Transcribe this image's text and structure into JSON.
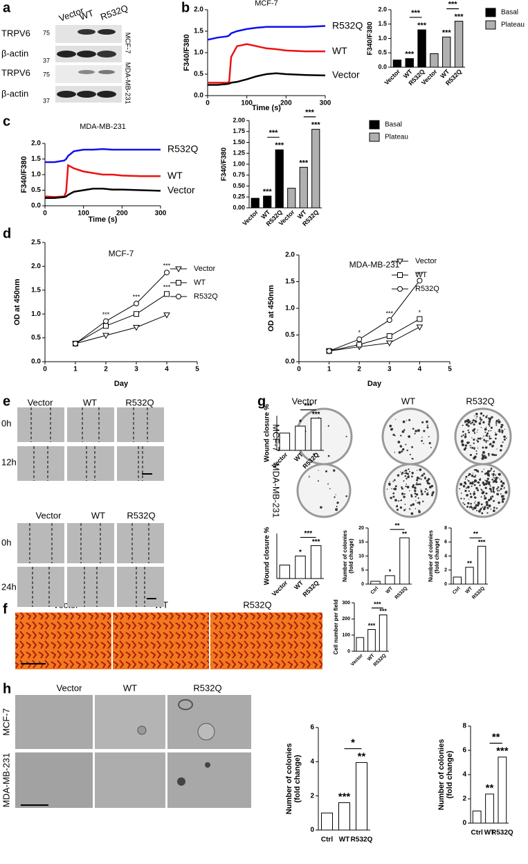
{
  "panel_labels": [
    "a",
    "b",
    "c",
    "d",
    "e",
    "g",
    "f",
    "h"
  ],
  "blot": {
    "lanes": [
      "Vector",
      "WT",
      "R532Q"
    ],
    "proteins": [
      "TRPV6",
      "β-actin",
      "TRPV6",
      "β-actin"
    ],
    "markers": [
      "75",
      "37",
      "75",
      "37"
    ],
    "cell_lines": [
      "MCF-7",
      "MDA-MB-231"
    ]
  },
  "wound": {
    "columns": [
      "Vector",
      "WT",
      "R532Q"
    ],
    "times": [
      "0h",
      "12h"
    ],
    "columns_2": [
      "Vector",
      "WT",
      "R532Q"
    ],
    "times_2": [
      "0h",
      "24h"
    ]
  },
  "colony": {
    "columns": [
      "Vector",
      "WT",
      "R532Q"
    ],
    "rows": [
      "MCF-7",
      "MDA-MB-231"
    ]
  },
  "invasion": {
    "columns": [
      "Vector",
      "WT",
      "R532Q"
    ]
  },
  "soft_agar": {
    "columns": [
      "Vector",
      "WT",
      "R532Q"
    ],
    "rows": [
      "MCF-7",
      "MDA-MB-231"
    ]
  },
  "chart_data": [
    {
      "type": "line",
      "title": "MCF-7",
      "xlabel": "Time (s)",
      "ylabel": "F340/F380",
      "x": [
        0,
        25,
        50,
        55,
        60,
        75,
        100,
        125,
        150,
        175,
        200,
        250,
        300
      ],
      "xlim": [
        0,
        300
      ],
      "xticks": [
        0,
        100,
        200,
        300
      ],
      "ylim": [
        0,
        2
      ],
      "yticks": [
        {
          "value": 0,
          "label": "0.0"
        },
        0.5,
        {
          "value": 1,
          "label": "1.0"
        },
        1.5,
        {
          "value": 2,
          "label": "2.0"
        }
      ],
      "legend": "end",
      "series": [
        {
          "name": "R532Q",
          "color": "#1010ee",
          "values": [
            1.3,
            1.35,
            1.38,
            1.4,
            1.45,
            1.5,
            1.55,
            1.58,
            1.6,
            1.6,
            1.6,
            1.6,
            1.62
          ]
        },
        {
          "name": "WT",
          "color": "#ee1010",
          "values": [
            0.3,
            0.3,
            0.3,
            0.32,
            0.9,
            1.15,
            1.2,
            1.15,
            1.1,
            1.08,
            1.05,
            1.03,
            1.03
          ]
        },
        {
          "name": "Vector",
          "color": "#000000",
          "values": [
            0.25,
            0.25,
            0.27,
            0.28,
            0.3,
            0.32,
            0.38,
            0.45,
            0.5,
            0.52,
            0.5,
            0.48,
            0.47
          ]
        }
      ]
    },
    {
      "type": "bar",
      "ylabel": "F340/F380",
      "categories": [
        "Vector",
        "WT",
        "R532Q",
        "Vector",
        "WT",
        "R532Q"
      ],
      "ylim": [
        0,
        2
      ],
      "yticks": [
        {
          "value": 0,
          "label": "0.0"
        },
        0.5,
        {
          "value": 1,
          "label": "1.0"
        },
        1.5,
        {
          "value": 2,
          "label": "2.0"
        }
      ],
      "tick_label_rotation": 45,
      "legend": "right",
      "series": [
        {
          "name": "Basal",
          "color": "#000000",
          "values": [
            0.25,
            0.3,
            1.3,
            null,
            null,
            null
          ],
          "stars": [
            null,
            "***",
            "***",
            null,
            null,
            null
          ]
        },
        {
          "name": "Plateau",
          "color": "#b0b0b0",
          "values": [
            null,
            null,
            null,
            0.47,
            1.05,
            1.6
          ],
          "stars": [
            null,
            null,
            null,
            null,
            "***",
            "***"
          ]
        }
      ],
      "brackets": [
        {
          "from": 1,
          "to": 2,
          "label": "***"
        },
        {
          "from": 4,
          "to": 5,
          "label": "***"
        }
      ]
    },
    {
      "type": "line",
      "title": "MDA-MB-231",
      "xlabel": "Time (s)",
      "ylabel": "F340/F380",
      "x": [
        0,
        25,
        50,
        55,
        60,
        75,
        100,
        125,
        150,
        175,
        200,
        250,
        300
      ],
      "xlim": [
        0,
        300
      ],
      "xticks": [
        0,
        100,
        200,
        300
      ],
      "ylim": [
        0,
        2
      ],
      "yticks": [
        {
          "value": 0,
          "label": "0.0"
        },
        0.5,
        {
          "value": 1,
          "label": "1.0"
        },
        1.5,
        {
          "value": 2,
          "label": "2.0"
        }
      ],
      "legend": "end",
      "series": [
        {
          "name": "R532Q",
          "color": "#1010ee",
          "values": [
            1.4,
            1.4,
            1.45,
            1.5,
            1.6,
            1.75,
            1.8,
            1.8,
            1.82,
            1.8,
            1.8,
            1.8,
            1.8
          ]
        },
        {
          "name": "WT",
          "color": "#ee1010",
          "values": [
            0.3,
            0.28,
            0.3,
            0.45,
            1.3,
            1.2,
            1.1,
            1.05,
            1.0,
            1.0,
            0.97,
            0.95,
            0.95
          ]
        },
        {
          "name": "Vector",
          "color": "#000000",
          "values": [
            0.25,
            0.25,
            0.28,
            0.3,
            0.35,
            0.45,
            0.5,
            0.55,
            0.55,
            0.52,
            0.52,
            0.5,
            0.48
          ]
        }
      ]
    },
    {
      "type": "bar",
      "ylabel": "F340/F380",
      "categories": [
        "Vector",
        "WT",
        "R532Q",
        "Vector",
        "WT",
        "R532Q"
      ],
      "ylim": [
        0,
        2
      ],
      "yticks": [
        {
          "value": 0,
          "label": "0.00"
        },
        0.25,
        {
          "value": 0.5,
          "label": "0.50"
        },
        0.75,
        {
          "value": 1,
          "label": "1.00"
        },
        1.25,
        {
          "value": 1.5,
          "label": "1.50"
        },
        1.75,
        {
          "value": 2,
          "label": "2.00"
        }
      ],
      "tick_label_rotation": 45,
      "legend": "right",
      "series": [
        {
          "name": "Basal",
          "color": "#000000",
          "values": [
            0.22,
            0.27,
            1.33,
            null,
            null,
            null
          ],
          "stars": [
            null,
            "***",
            "***",
            null,
            null,
            null
          ]
        },
        {
          "name": "Plateau",
          "color": "#b0b0b0",
          "values": [
            null,
            null,
            null,
            0.45,
            0.93,
            1.8
          ],
          "stars": [
            null,
            null,
            null,
            null,
            "***",
            "***"
          ]
        }
      ],
      "brackets": [
        {
          "from": 1,
          "to": 2,
          "label": "***"
        },
        {
          "from": 4,
          "to": 5,
          "label": "***"
        }
      ]
    },
    {
      "type": "line",
      "title": "MCF-7",
      "xlabel": "Day",
      "ylabel": "OD at 450nm",
      "x": [
        1,
        2,
        3,
        4
      ],
      "xlim": [
        0,
        5
      ],
      "xticks": [
        0,
        1,
        2,
        3,
        4,
        5
      ],
      "ylim": [
        0,
        2.5
      ],
      "yticks": [
        {
          "value": 0,
          "label": "0.0"
        },
        0.5,
        {
          "value": 1,
          "label": "1.0"
        },
        1.5,
        {
          "value": 2,
          "label": "2.0"
        },
        2.5
      ],
      "legend": "right",
      "series": [
        {
          "name": "Vector",
          "color": "#000000",
          "marker": "triangle-down",
          "values": [
            0.38,
            0.55,
            0.72,
            0.98
          ]
        },
        {
          "name": "WT",
          "color": "#000000",
          "marker": "square",
          "values": [
            0.38,
            0.75,
            1.0,
            1.42
          ],
          "stars": [
            null,
            null,
            null,
            "***"
          ]
        },
        {
          "name": "R532Q",
          "color": "#000000",
          "marker": "circle",
          "values": [
            0.38,
            0.85,
            1.22,
            1.87
          ],
          "stars": [
            null,
            "***",
            "***",
            "***"
          ]
        }
      ]
    },
    {
      "type": "line",
      "title": "MDA-MB-231",
      "xlabel": "Day",
      "ylabel": "OD at 450nm",
      "x": [
        1,
        2,
        3,
        4
      ],
      "xlim": [
        0,
        5
      ],
      "xticks": [
        0,
        1,
        2,
        3,
        4,
        5
      ],
      "ylim": [
        0,
        2
      ],
      "yticks": [
        {
          "value": 0,
          "label": "0.0"
        },
        0.5,
        {
          "value": 1,
          "label": "1.0"
        },
        1.5,
        {
          "value": 2,
          "label": "2.0"
        }
      ],
      "legend": "right",
      "series": [
        {
          "name": "Vector",
          "color": "#000000",
          "marker": "triangle-down",
          "values": [
            0.2,
            0.28,
            0.35,
            0.65
          ]
        },
        {
          "name": "WT",
          "color": "#000000",
          "marker": "square",
          "values": [
            0.2,
            0.32,
            0.48,
            0.8
          ],
          "stars": [
            null,
            null,
            null,
            "*"
          ]
        },
        {
          "name": "R532Q",
          "color": "#000000",
          "marker": "circle",
          "values": [
            0.2,
            0.42,
            0.78,
            1.52
          ],
          "stars": [
            null,
            "*",
            "***",
            "***"
          ]
        }
      ]
    },
    {
      "type": "bar",
      "ylabel": "Wound closure %",
      "categories": [
        "Vector",
        "WT",
        "R532Q"
      ],
      "values": [
        0.5,
        0.7,
        0.93
      ],
      "color": "#ffffff",
      "ylim": [
        0,
        1
      ],
      "tick_label_rotation": 45,
      "stars": [
        null,
        "*",
        "***"
      ],
      "brackets": [
        {
          "from": 1,
          "to": 2,
          "label": "***"
        }
      ]
    },
    {
      "type": "bar",
      "ylabel": "Wound closure %",
      "categories": [
        "Vector",
        "WT",
        "R532Q"
      ],
      "values": [
        0.3,
        0.5,
        0.73
      ],
      "color": "#ffffff",
      "ylim": [
        0,
        1
      ],
      "tick_label_rotation": 45,
      "stars": [
        null,
        "*",
        "***"
      ],
      "brackets": [
        {
          "from": 1,
          "to": 2,
          "label": "***"
        }
      ]
    },
    {
      "type": "bar",
      "ylabel": [
        "Number of colonies",
        "(fold change)"
      ],
      "categories": [
        "Ctrl",
        "WT",
        "R532Q"
      ],
      "values": [
        1,
        3,
        16.5
      ],
      "color": "#ffffff",
      "ylim": [
        0,
        20
      ],
      "yticks": [
        0,
        5,
        10,
        15,
        20
      ],
      "tick_label_rotation": 45,
      "stars": [
        null,
        "*",
        "**"
      ],
      "brackets": [
        {
          "from": 1,
          "to": 2,
          "label": "**"
        }
      ]
    },
    {
      "type": "bar",
      "ylabel": [
        "Number of colonies",
        "(fold change)"
      ],
      "categories": [
        "Ctrl",
        "WT",
        "R532Q"
      ],
      "values": [
        1,
        2.4,
        5.4
      ],
      "color": "#ffffff",
      "ylim": [
        0,
        8
      ],
      "yticks": [
        0,
        2,
        4,
        6,
        8
      ],
      "tick_label_rotation": 45,
      "stars": [
        null,
        "**",
        "***"
      ],
      "brackets": [
        {
          "from": 1,
          "to": 2,
          "label": "**"
        }
      ]
    },
    {
      "type": "bar",
      "ylabel": "Cell number per field",
      "categories": [
        "Vector",
        "WT",
        "R532Q"
      ],
      "values": [
        85,
        135,
        225
      ],
      "color": "#ffffff",
      "ylim": [
        0,
        300
      ],
      "yticks": [
        0,
        100,
        200,
        300
      ],
      "tick_label_rotation": 45,
      "stars": [
        null,
        "***",
        "***"
      ],
      "brackets": [
        {
          "from": 1,
          "to": 2,
          "label": "***"
        }
      ]
    },
    {
      "type": "bar",
      "ylabel": [
        "Number of colonies",
        "(fold change)"
      ],
      "categories": [
        "Ctrl",
        "WT",
        "R532Q"
      ],
      "values": [
        1,
        1.6,
        3.95
      ],
      "color": "#ffffff",
      "ylim": [
        0,
        6
      ],
      "yticks": [
        0,
        2,
        4,
        6
      ],
      "stars": [
        null,
        "***",
        "**"
      ],
      "brackets": [
        {
          "from": 1,
          "to": 2,
          "label": "*"
        }
      ]
    },
    {
      "type": "bar",
      "ylabel": [
        "Number of colonies",
        "(fold change)"
      ],
      "categories": [
        "Ctrl",
        "WT",
        "R532Q"
      ],
      "values": [
        1,
        2.4,
        5.45
      ],
      "color": "#ffffff",
      "ylim": [
        0,
        8
      ],
      "yticks": [
        0,
        2,
        4,
        6,
        8
      ],
      "stars": [
        null,
        "**",
        "***"
      ],
      "brackets": [
        {
          "from": 1,
          "to": 2,
          "label": "**"
        }
      ]
    }
  ]
}
